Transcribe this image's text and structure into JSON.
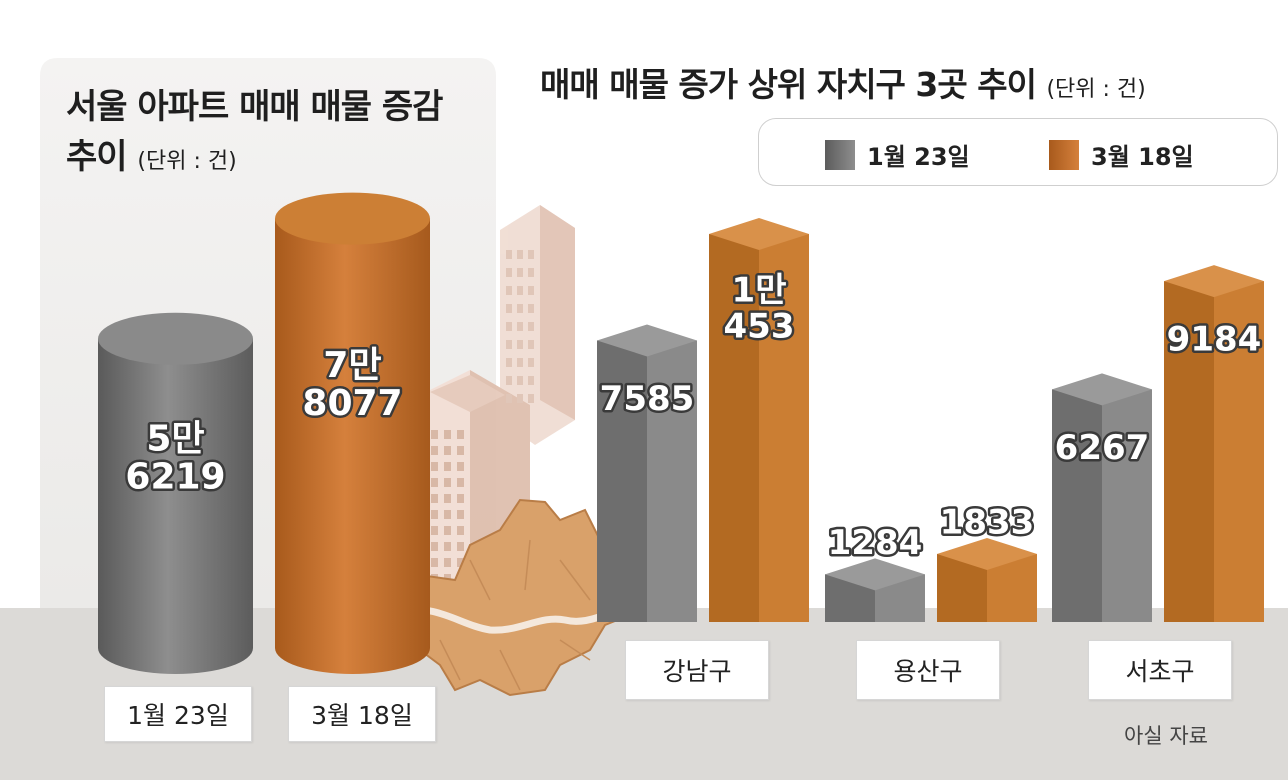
{
  "left_panel": {
    "title_line1": "서울 아파트 매매 매물 증감",
    "title_line2": "추이",
    "unit": "(단위 : 건)"
  },
  "right_panel": {
    "title": "매매 매물 증가 상위 자치구 3곳 추이",
    "unit": "(단위 : 건)"
  },
  "colors": {
    "jan": "#6e6e6e",
    "mar": "#b36a22",
    "jan_light": "#8a8a8a",
    "mar_light": "#cc7f35",
    "floor": "#dcdad7",
    "left_panel_bg": "#f3f2f1",
    "map": "#d9a16a"
  },
  "legend": [
    "1월 23일",
    "3월 18일"
  ],
  "source": "아실 자료",
  "chart_data": [
    {
      "type": "bar",
      "title": "서울 아파트 매매 매물 증감 추이",
      "unit": "(단위 : 건)",
      "categories": [
        "1월 23일",
        "3월 18일"
      ],
      "values": [
        56219,
        78077
      ],
      "value_labels": [
        [
          "5만",
          "6219"
        ],
        [
          "7만",
          "8077"
        ]
      ]
    },
    {
      "type": "bar",
      "title": "매매 매물 증가 상위 자치구 3곳 추이",
      "unit": "(단위 : 건)",
      "categories": [
        "강남구",
        "용산구",
        "서초구"
      ],
      "series": [
        {
          "name": "1월 23일",
          "values": [
            7585,
            1284,
            6267
          ],
          "labels": [
            [
              "7585"
            ],
            [
              "1284"
            ],
            [
              "6267"
            ]
          ]
        },
        {
          "name": "3월 18일",
          "values": [
            10453,
            1833,
            9184
          ],
          "labels": [
            [
              "1만",
              "453"
            ],
            [
              "1833"
            ],
            [
              "9184"
            ]
          ]
        }
      ]
    }
  ]
}
